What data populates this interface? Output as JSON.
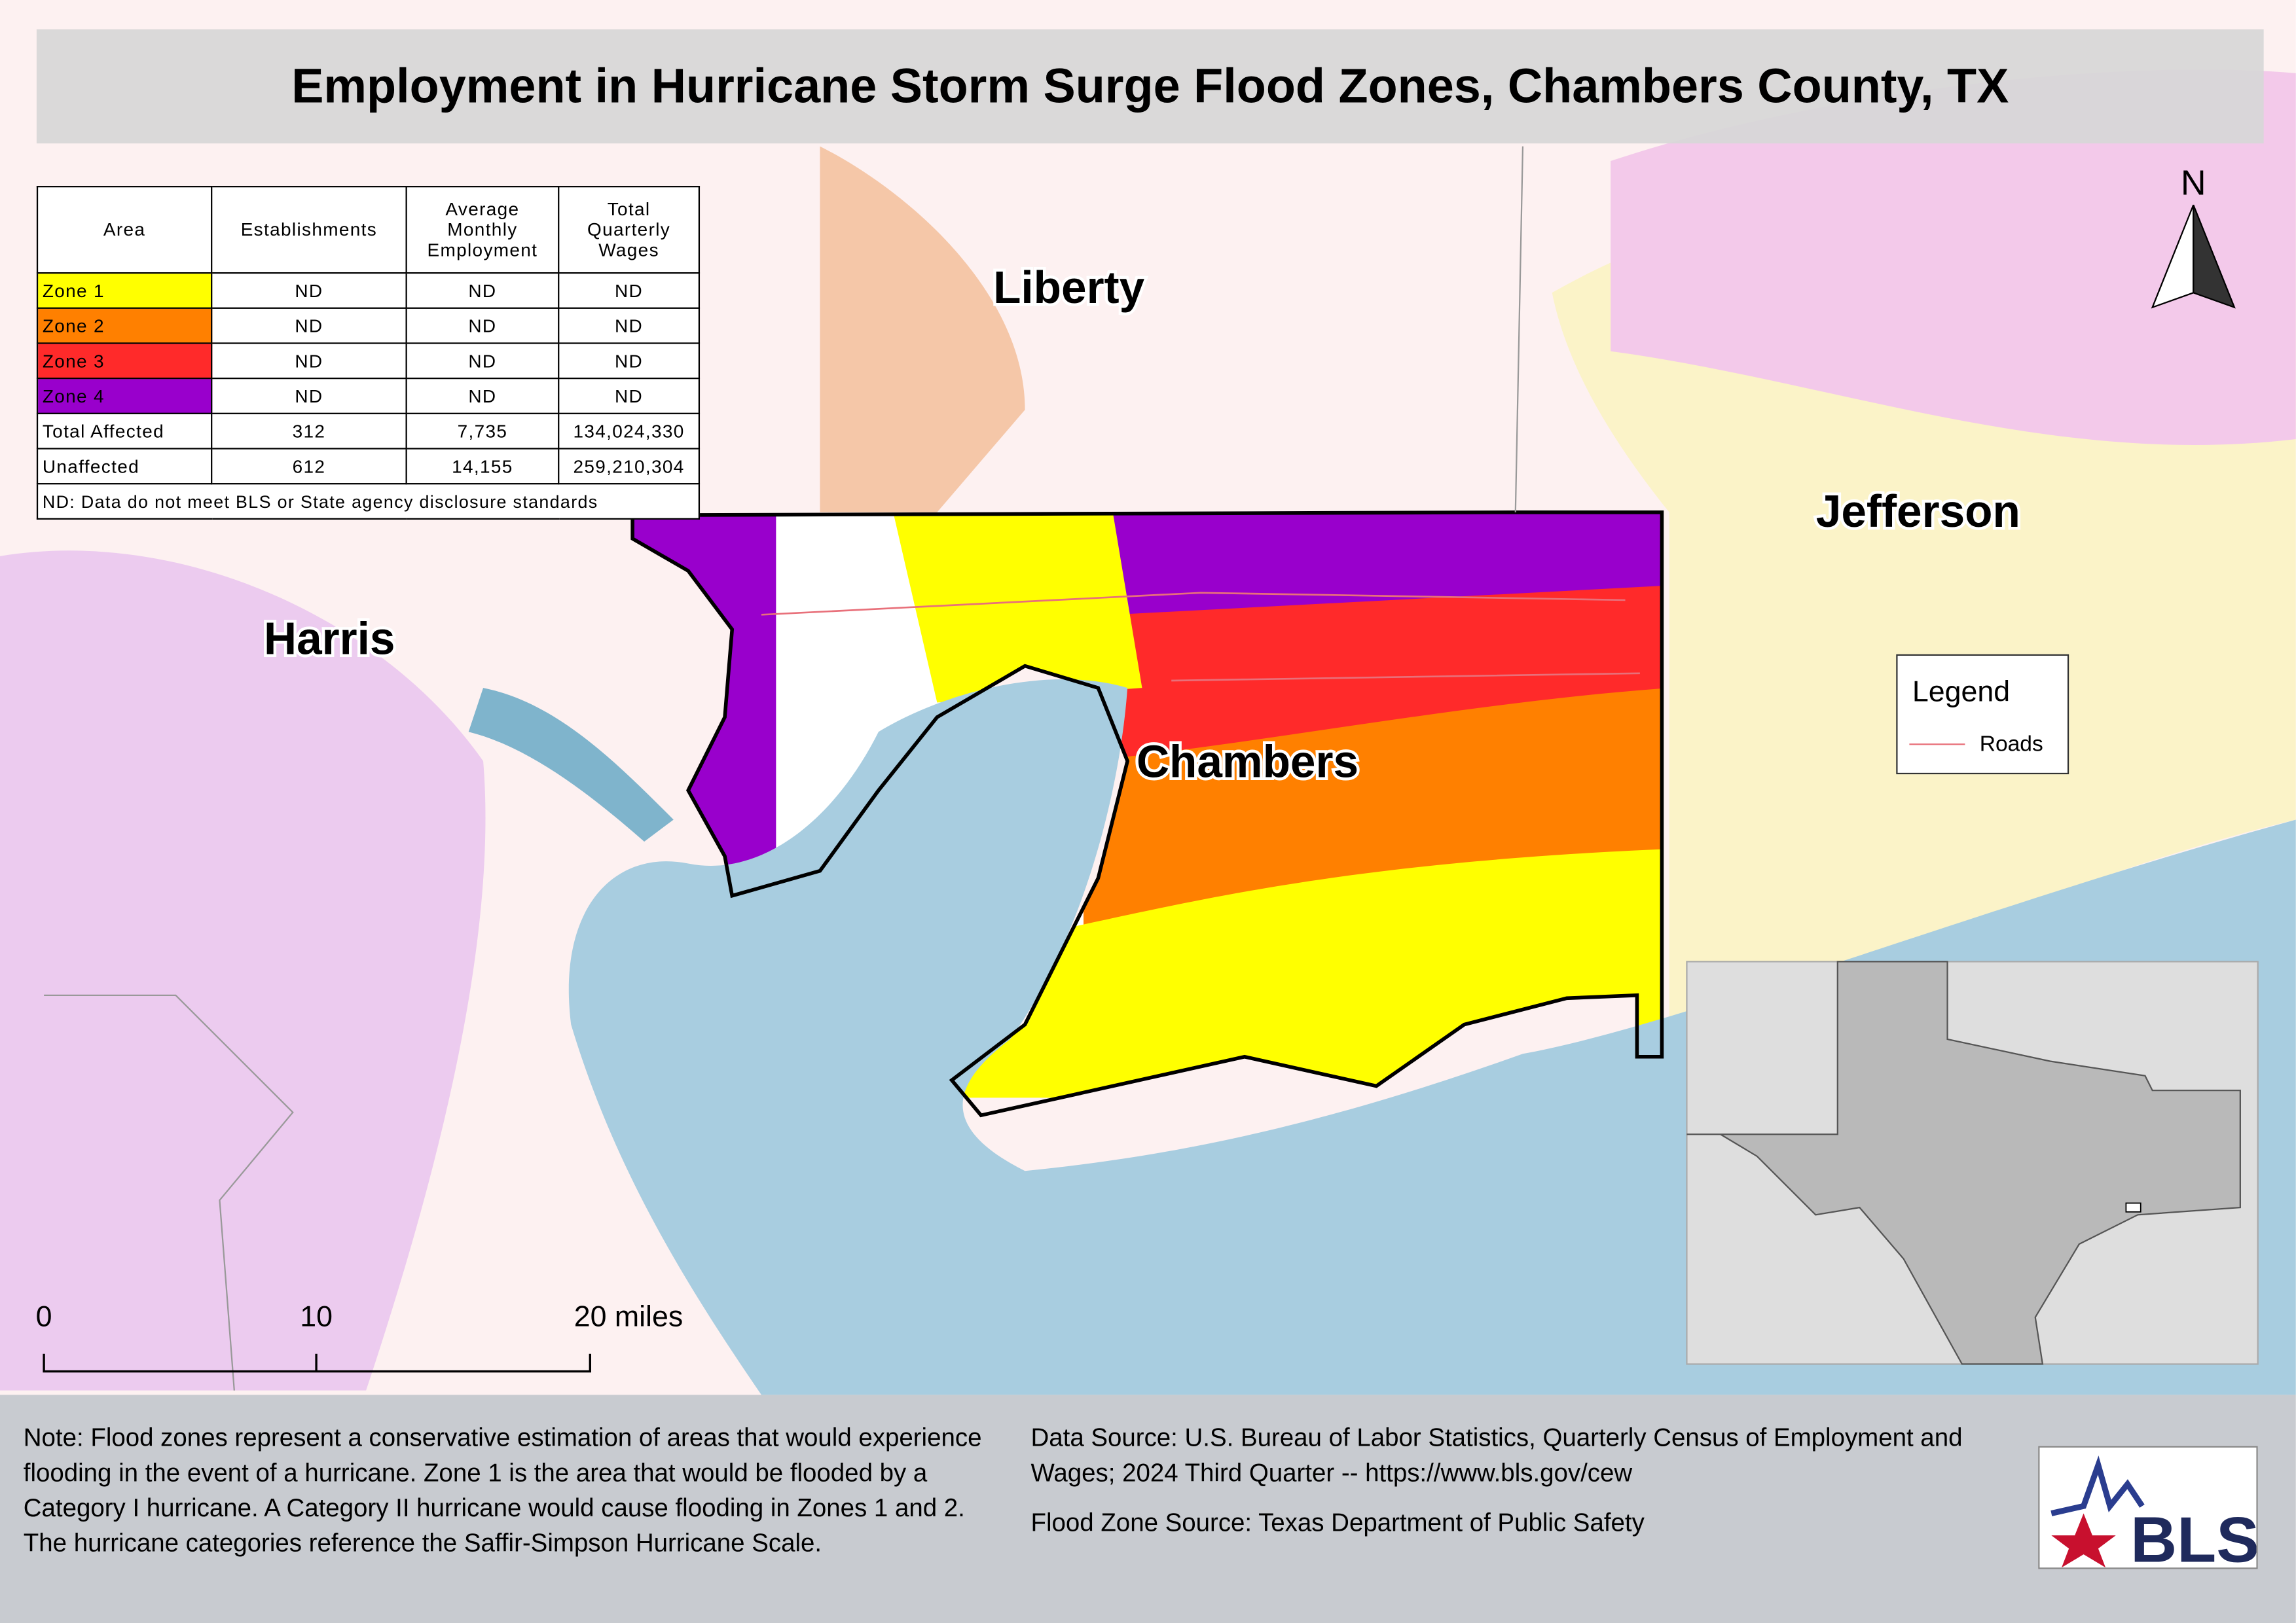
{
  "header": {
    "title": "Employment in Hurricane Storm Surge Flood Zones, Chambers County, TX"
  },
  "table": {
    "columns": [
      "Area",
      "Establishments",
      "Average Monthly Employment",
      "Total Quarterly Wages"
    ],
    "rows": [
      {
        "area": "Zone 1",
        "color": "#ffff00",
        "cells": [
          "ND",
          "ND",
          "ND"
        ]
      },
      {
        "area": "Zone 2",
        "color": "#ff8000",
        "cells": [
          "ND",
          "ND",
          "ND"
        ]
      },
      {
        "area": "Zone 3",
        "color": "#ff2a2a",
        "cells": [
          "ND",
          "ND",
          "ND"
        ]
      },
      {
        "area": "Zone 4",
        "color": "#9900cc",
        "cells": [
          "ND",
          "ND",
          "ND"
        ]
      },
      {
        "area": "Total Affected",
        "cells": [
          "312",
          "7,735",
          "134,024,330"
        ]
      },
      {
        "area": "Unaffected",
        "cells": [
          "612",
          "14,155",
          "259,210,304"
        ]
      }
    ],
    "footnote": "ND: Data do not meet BLS or State agency disclosure standards"
  },
  "map": {
    "labels": [
      "Liberty",
      "Jefferson",
      "Harris",
      "Chambers"
    ],
    "north": "N",
    "legend": {
      "title": "Legend",
      "items": [
        {
          "label": "Roads",
          "color": "#e8707a"
        }
      ]
    },
    "scale_bar": [
      "0",
      "10",
      "20 miles"
    ]
  },
  "notes": {
    "text": "Note: Flood zones represent a conservative estimation of areas that would experience flooding in the event of a hurricane. Zone 1 is the area that would be flooded by a Category I hurricane. A Category II hurricane would cause flooding in Zones 1 and 2. The hurricane categories reference the Saffir-Simpson Hurricane Scale.",
    "source": "Data Source: U.S. Bureau of Labor Statistics, Quarterly Census of Employment and Wages; 2024 Third Quarter -- https://www.bls.gov/cew",
    "flood_source": "Flood Zone Source: Texas Department of Public Safety"
  },
  "logo": "BLS"
}
